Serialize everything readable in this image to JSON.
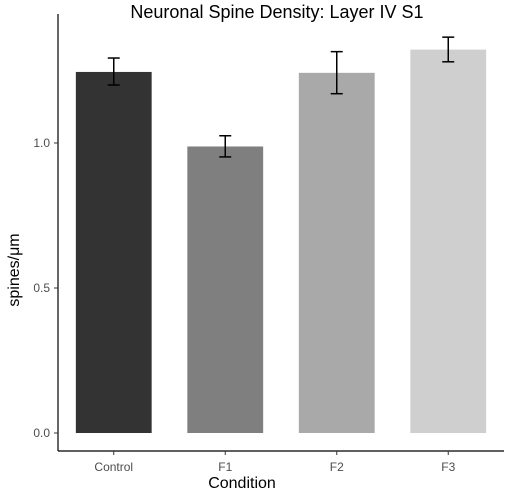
{
  "chart_data": {
    "type": "bar",
    "title": "Neuronal Spine Density: Layer IV S1",
    "xlabel": "Condition",
    "ylabel": "spines/μm",
    "categories": [
      "Control",
      "F1",
      "F2",
      "F3"
    ],
    "values": [
      1.245,
      0.988,
      1.242,
      1.322
    ],
    "error_low": [
      1.2,
      0.952,
      1.17,
      1.28
    ],
    "error_high": [
      1.293,
      1.025,
      1.315,
      1.365
    ],
    "bar_colors": [
      "#333333",
      "#7f7f7f",
      "#a9a9a9",
      "#cfcfcf"
    ],
    "ylim": [
      0,
      1.45
    ],
    "yticks": [
      0.0,
      0.5,
      1.0
    ],
    "ytick_labels": [
      "0.0",
      "0.5",
      "1.0"
    ],
    "grid": false,
    "legend": "none"
  }
}
